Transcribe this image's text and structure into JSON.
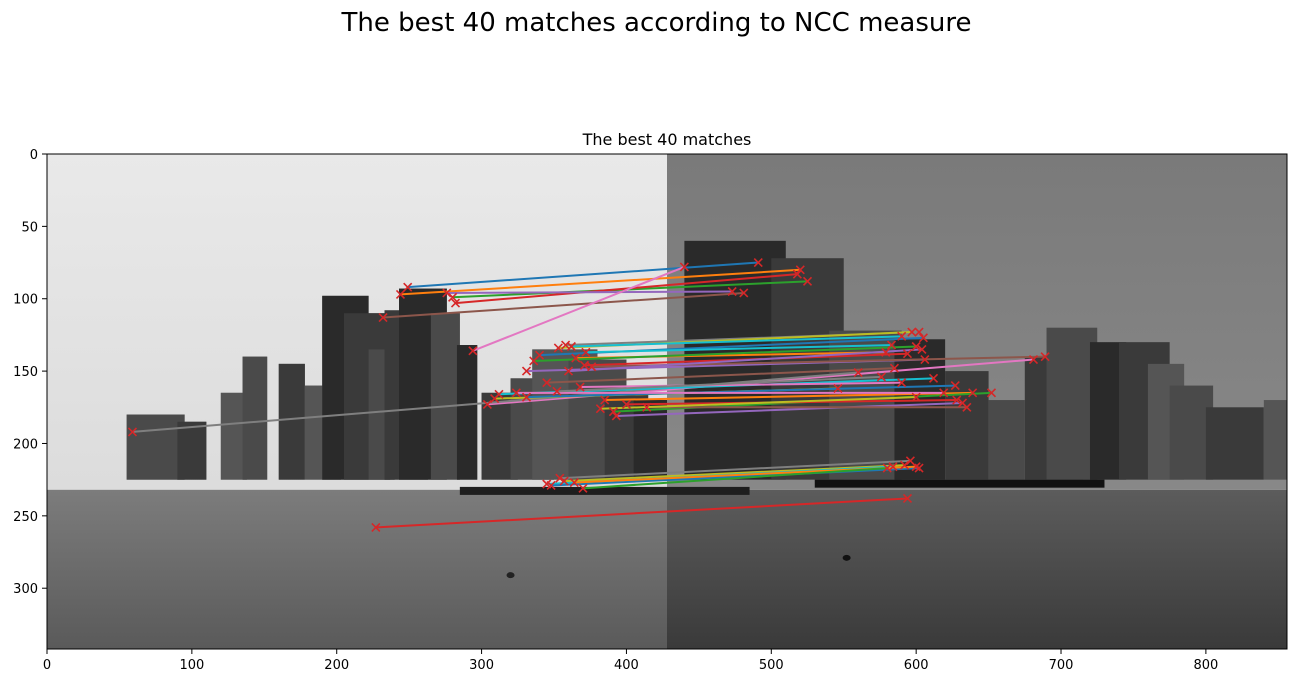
{
  "suptitle": "The best 40 matches according to NCC measure",
  "chart_data": {
    "type": "scatter",
    "title": "The best 40 matches",
    "xlabel": "",
    "ylabel": "",
    "xlim": [
      0,
      856
    ],
    "ylim": [
      342,
      0
    ],
    "x_ticks": [
      0,
      100,
      200,
      300,
      400,
      500,
      600,
      700,
      800
    ],
    "y_ticks": [
      0,
      50,
      100,
      150,
      200,
      250,
      300
    ],
    "grid": false,
    "image_split_x": 428,
    "marker_color": "#d62728",
    "matches": [
      {
        "x1": 249,
        "y1": 92,
        "x2": 491,
        "y2": 75
      },
      {
        "x1": 244,
        "y1": 97,
        "x2": 520,
        "y2": 80
      },
      {
        "x1": 280,
        "y1": 99,
        "x2": 525,
        "y2": 88
      },
      {
        "x1": 282,
        "y1": 103,
        "x2": 518,
        "y2": 83
      },
      {
        "x1": 276,
        "y1": 96,
        "x2": 473,
        "y2": 95
      },
      {
        "x1": 232,
        "y1": 113,
        "x2": 481,
        "y2": 96
      },
      {
        "x1": 294,
        "y1": 136,
        "x2": 440,
        "y2": 78
      },
      {
        "x1": 358,
        "y1": 132,
        "x2": 602,
        "y2": 123
      },
      {
        "x1": 353,
        "y1": 134,
        "x2": 597,
        "y2": 123
      },
      {
        "x1": 362,
        "y1": 133,
        "x2": 590,
        "y2": 126
      },
      {
        "x1": 340,
        "y1": 139,
        "x2": 605,
        "y2": 127
      },
      {
        "x1": 365,
        "y1": 141,
        "x2": 579,
        "y2": 137
      },
      {
        "x1": 336,
        "y1": 143,
        "x2": 600,
        "y2": 133
      },
      {
        "x1": 371,
        "y1": 146,
        "x2": 594,
        "y2": 138
      },
      {
        "x1": 331,
        "y1": 150,
        "x2": 606,
        "y2": 142
      },
      {
        "x1": 376,
        "y1": 147,
        "x2": 689,
        "y2": 140
      },
      {
        "x1": 304,
        "y1": 173,
        "x2": 681,
        "y2": 142
      },
      {
        "x1": 59,
        "y1": 192,
        "x2": 560,
        "y2": 151
      },
      {
        "x1": 309,
        "y1": 169,
        "x2": 546,
        "y2": 162
      },
      {
        "x1": 312,
        "y1": 166,
        "x2": 612,
        "y2": 155
      },
      {
        "x1": 331,
        "y1": 168,
        "x2": 627,
        "y2": 160
      },
      {
        "x1": 385,
        "y1": 170,
        "x2": 639,
        "y2": 165
      },
      {
        "x1": 391,
        "y1": 178,
        "x2": 652,
        "y2": 165
      },
      {
        "x1": 400,
        "y1": 173,
        "x2": 628,
        "y2": 170
      },
      {
        "x1": 393,
        "y1": 181,
        "x2": 632,
        "y2": 172
      },
      {
        "x1": 414,
        "y1": 175,
        "x2": 635,
        "y2": 175
      },
      {
        "x1": 324,
        "y1": 165,
        "x2": 619,
        "y2": 165
      },
      {
        "x1": 354,
        "y1": 224,
        "x2": 596,
        "y2": 212
      },
      {
        "x1": 357,
        "y1": 226,
        "x2": 592,
        "y2": 215
      },
      {
        "x1": 345,
        "y1": 228,
        "x2": 584,
        "y2": 216
      },
      {
        "x1": 348,
        "y1": 229,
        "x2": 602,
        "y2": 217
      },
      {
        "x1": 364,
        "y1": 227,
        "x2": 600,
        "y2": 216
      },
      {
        "x1": 370,
        "y1": 231,
        "x2": 580,
        "y2": 217
      },
      {
        "x1": 227,
        "y1": 258,
        "x2": 594,
        "y2": 238
      },
      {
        "x1": 360,
        "y1": 150,
        "x2": 604,
        "y2": 135
      },
      {
        "x1": 345,
        "y1": 158,
        "x2": 585,
        "y2": 148
      },
      {
        "x1": 368,
        "y1": 161,
        "x2": 590,
        "y2": 158
      },
      {
        "x1": 352,
        "y1": 164,
        "x2": 576,
        "y2": 154
      },
      {
        "x1": 382,
        "y1": 176,
        "x2": 600,
        "y2": 168
      },
      {
        "x1": 372,
        "y1": 137,
        "x2": 583,
        "y2": 132
      }
    ]
  }
}
